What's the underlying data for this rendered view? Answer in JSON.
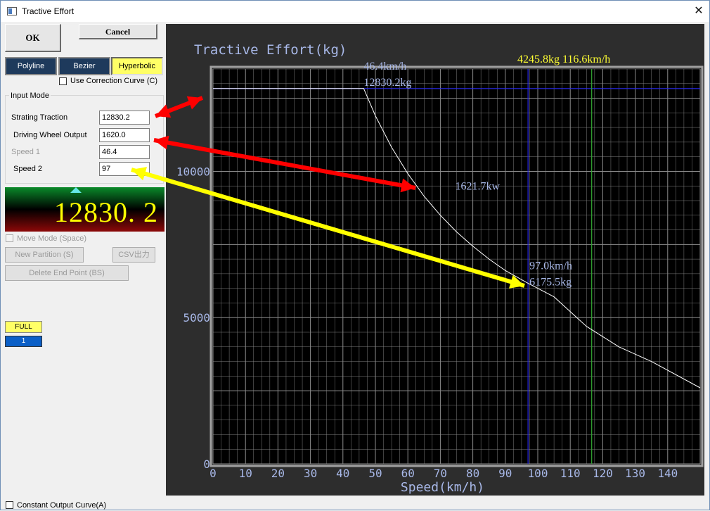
{
  "window": {
    "title": "Tractive Effort",
    "close_glyph": "✕"
  },
  "buttons": {
    "ok": "OK",
    "cancel": "Cancel"
  },
  "modes": [
    {
      "label": "Polyline",
      "active": false
    },
    {
      "label": "Bezier",
      "active": false
    },
    {
      "label": "Hyperbolic",
      "active": true
    }
  ],
  "use_correction_curve": {
    "label": "Use Correction Curve (C)",
    "checked": false
  },
  "input_mode": {
    "title": "Input Mode",
    "fields": [
      {
        "label": "Strating Traction",
        "value": "12830.2",
        "enabled": true
      },
      {
        "label": "Driving Wheel Output",
        "value": "1620.0",
        "enabled": true
      },
      {
        "label": "Speed 1",
        "value": "46.4",
        "enabled": false
      },
      {
        "label": "Speed 2",
        "value": "97",
        "enabled": true
      }
    ]
  },
  "display": {
    "value": "12830. 2"
  },
  "move_mode": {
    "label": "Move Mode (Space)",
    "checked": false
  },
  "actions": {
    "new_partition": "New Partition (S)",
    "csv_export": "CSV出力",
    "delete_end_point": "Delete End Point (BS)"
  },
  "notch": {
    "mode": "FULL",
    "number": "1"
  },
  "constant_output_curve": {
    "label": "Constant Output Curve(A)",
    "checked": false
  },
  "chart_data": {
    "type": "line",
    "title": "Tractive Effort(kg)",
    "xlabel": "Speed(km/h)",
    "ylabel": "",
    "xlim": [
      0,
      150
    ],
    "ylim": [
      0,
      13500
    ],
    "x_ticks": [
      0,
      10,
      20,
      30,
      40,
      50,
      60,
      70,
      80,
      90,
      100,
      110,
      120,
      130,
      140
    ],
    "y_ticks": [
      0,
      5000,
      10000
    ],
    "grid": true,
    "cursor_readout": "4245.8kg   116.6km/h",
    "cursor": {
      "speed": 116.6,
      "effort": 4245.8
    },
    "series": [
      {
        "x": [
          0,
          46.4,
          50,
          55,
          60,
          65,
          70,
          75,
          80,
          85,
          90,
          97,
          105,
          115,
          125,
          135,
          150
        ],
        "values": [
          12830.2,
          12830.2,
          11900,
          10820,
          9920,
          9150,
          8500,
          7930,
          7440,
          7000,
          6610,
          6175.5,
          5710,
          4700,
          4000,
          3500,
          2600
        ]
      }
    ],
    "reference_lines": {
      "starting_effort": 12830.2,
      "speed_2": 97.0
    },
    "annotations": [
      {
        "line1": "46.4km/h",
        "line2": "12830.2kg",
        "x": 46.4,
        "y": 12830.2
      },
      {
        "line1": "1621.7kw",
        "x": 75,
        "y": 9300
      },
      {
        "line1": "97.0km/h",
        "line2": "6175.5kg",
        "x": 97,
        "y": 6175.5
      }
    ],
    "colors": {
      "background": "#000000",
      "panel": "#2d2d2d",
      "grid": "#8c8c8c",
      "curve": "#ffffff",
      "label": "#a8b8e8",
      "readout": "#ffff33",
      "cursor": "#33aa33",
      "reference": "#2a2aee"
    }
  },
  "overlay_arrows": [
    {
      "color": "#ff0000",
      "from": "Strating Traction",
      "to": "curve start"
    },
    {
      "color": "#ff0000",
      "from": "Driving Wheel Output",
      "to": "hyperbolic curve"
    },
    {
      "color": "#ffff00",
      "from": "Speed 2",
      "to": "97.0km/h point"
    }
  ]
}
